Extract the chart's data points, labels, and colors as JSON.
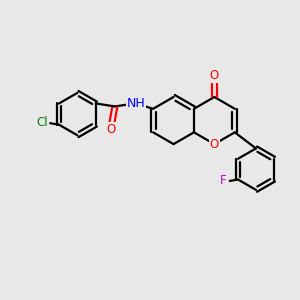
{
  "bg_color": "#e8e8e8",
  "bond_color": "#000000",
  "atom_colors": {
    "Cl": "#008000",
    "O": "#ff0000",
    "N": "#0000ff",
    "F": "#cc00cc"
  },
  "line_width": 1.6,
  "font_size": 8.5
}
